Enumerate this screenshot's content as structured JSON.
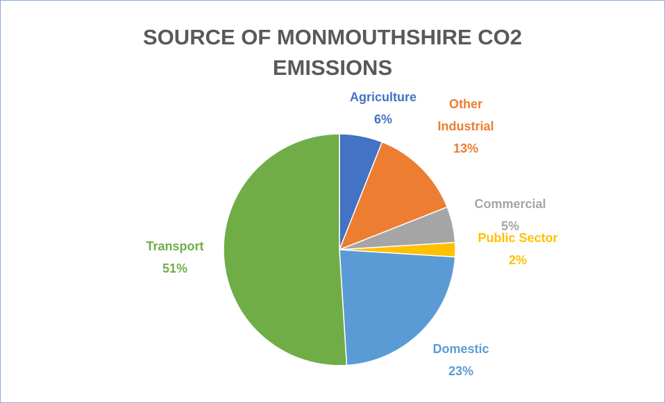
{
  "chart_data": {
    "type": "pie",
    "title": "SOURCE OF MONMOUTHSHIRE CO2 EMISSIONS",
    "categories": [
      "Agriculture",
      "Other Industrial",
      "Commercial",
      "Public Sector",
      "Domestic",
      "Transport"
    ],
    "values": [
      6,
      13,
      5,
      2,
      23,
      51
    ],
    "value_labels": [
      "6%",
      "13%",
      "5%",
      "2%",
      "23%",
      "51%"
    ],
    "colors": [
      "#4472c4",
      "#ed7d31",
      "#a5a5a5",
      "#ffc000",
      "#5b9bd5",
      "#70ad47"
    ]
  }
}
